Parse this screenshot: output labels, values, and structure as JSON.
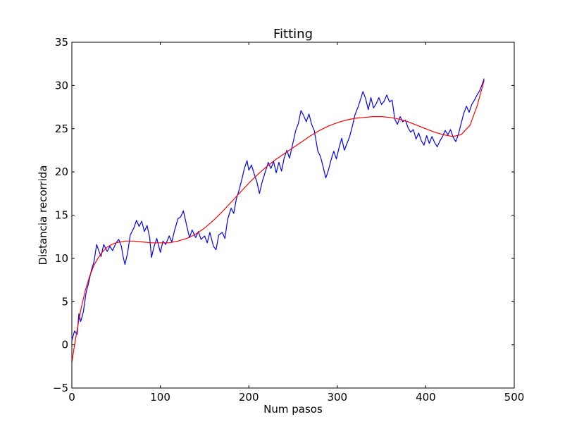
{
  "chart_data": {
    "type": "line",
    "title": "Fitting",
    "xlabel": "Num pasos",
    "ylabel": "Distancia recorrida",
    "xlim": [
      0,
      500
    ],
    "ylim": [
      -5,
      35
    ],
    "xticks": [
      0,
      100,
      200,
      300,
      400,
      500
    ],
    "yticks": [
      -5,
      0,
      5,
      10,
      15,
      20,
      25,
      30,
      35
    ],
    "grid": false,
    "legend": "none",
    "series": [
      {
        "color": "#0000ff",
        "style": "noisy data",
        "points": [
          [
            0,
            0.5
          ],
          [
            3,
            1.6
          ],
          [
            6,
            1.2
          ],
          [
            8,
            3.6
          ],
          [
            10,
            2.7
          ],
          [
            13,
            3.8
          ],
          [
            16,
            6.0
          ],
          [
            19,
            7.2
          ],
          [
            22,
            8.6
          ],
          [
            25,
            9.6
          ],
          [
            28,
            11.6
          ],
          [
            30,
            11.0
          ],
          [
            33,
            10.2
          ],
          [
            36,
            11.6
          ],
          [
            40,
            10.8
          ],
          [
            43,
            11.4
          ],
          [
            46,
            10.9
          ],
          [
            50,
            11.8
          ],
          [
            53,
            12.2
          ],
          [
            56,
            11.4
          ],
          [
            58,
            10.2
          ],
          [
            60,
            9.3
          ],
          [
            63,
            10.6
          ],
          [
            66,
            12.7
          ],
          [
            70,
            13.5
          ],
          [
            73,
            14.4
          ],
          [
            76,
            13.7
          ],
          [
            79,
            14.3
          ],
          [
            82,
            13.1
          ],
          [
            85,
            13.8
          ],
          [
            88,
            12.4
          ],
          [
            90,
            10.1
          ],
          [
            93,
            11.4
          ],
          [
            96,
            12.3
          ],
          [
            100,
            10.7
          ],
          [
            103,
            12.0
          ],
          [
            106,
            11.6
          ],
          [
            110,
            12.6
          ],
          [
            113,
            11.9
          ],
          [
            116,
            13.2
          ],
          [
            120,
            14.6
          ],
          [
            123,
            14.8
          ],
          [
            126,
            15.5
          ],
          [
            128,
            14.6
          ],
          [
            130,
            13.7
          ],
          [
            133,
            12.4
          ],
          [
            136,
            13.3
          ],
          [
            140,
            12.4
          ],
          [
            143,
            13.1
          ],
          [
            146,
            12.2
          ],
          [
            150,
            12.6
          ],
          [
            153,
            11.8
          ],
          [
            156,
            13.0
          ],
          [
            160,
            11.4
          ],
          [
            163,
            11.0
          ],
          [
            166,
            12.7
          ],
          [
            170,
            13.0
          ],
          [
            173,
            12.3
          ],
          [
            176,
            14.5
          ],
          [
            180,
            15.8
          ],
          [
            183,
            15.2
          ],
          [
            186,
            16.9
          ],
          [
            189,
            17.9
          ],
          [
            192,
            19.1
          ],
          [
            195,
            20.4
          ],
          [
            198,
            21.3
          ],
          [
            200,
            20.2
          ],
          [
            203,
            20.8
          ],
          [
            206,
            19.8
          ],
          [
            209,
            18.9
          ],
          [
            212,
            17.5
          ],
          [
            215,
            18.8
          ],
          [
            218,
            19.8
          ],
          [
            222,
            21.1
          ],
          [
            225,
            20.4
          ],
          [
            228,
            21.2
          ],
          [
            231,
            19.9
          ],
          [
            234,
            21.1
          ],
          [
            237,
            20.1
          ],
          [
            240,
            21.6
          ],
          [
            243,
            22.5
          ],
          [
            246,
            21.6
          ],
          [
            250,
            23.4
          ],
          [
            253,
            24.8
          ],
          [
            256,
            25.6
          ],
          [
            259,
            27.1
          ],
          [
            262,
            26.5
          ],
          [
            265,
            25.8
          ],
          [
            268,
            26.7
          ],
          [
            271,
            25.5
          ],
          [
            274,
            24.8
          ],
          [
            278,
            22.4
          ],
          [
            281,
            21.8
          ],
          [
            284,
            20.6
          ],
          [
            287,
            19.3
          ],
          [
            290,
            20.2
          ],
          [
            293,
            21.4
          ],
          [
            296,
            22.4
          ],
          [
            299,
            21.5
          ],
          [
            302,
            22.8
          ],
          [
            305,
            23.9
          ],
          [
            308,
            22.5
          ],
          [
            311,
            23.3
          ],
          [
            314,
            24.1
          ],
          [
            317,
            25.3
          ],
          [
            320,
            26.6
          ],
          [
            323,
            27.4
          ],
          [
            326,
            28.3
          ],
          [
            329,
            29.3
          ],
          [
            332,
            28.5
          ],
          [
            335,
            27.2
          ],
          [
            338,
            28.6
          ],
          [
            341,
            27.4
          ],
          [
            344,
            27.9
          ],
          [
            347,
            28.6
          ],
          [
            350,
            27.8
          ],
          [
            353,
            28.2
          ],
          [
            356,
            28.9
          ],
          [
            359,
            28.1
          ],
          [
            362,
            28.3
          ],
          [
            365,
            26.1
          ],
          [
            368,
            25.5
          ],
          [
            371,
            26.4
          ],
          [
            374,
            25.8
          ],
          [
            377,
            26.0
          ],
          [
            380,
            25.1
          ],
          [
            383,
            24.6
          ],
          [
            386,
            24.9
          ],
          [
            389,
            23.8
          ],
          [
            392,
            24.5
          ],
          [
            395,
            23.6
          ],
          [
            398,
            23.1
          ],
          [
            401,
            24.2
          ],
          [
            404,
            23.3
          ],
          [
            407,
            24.1
          ],
          [
            410,
            23.4
          ],
          [
            413,
            22.9
          ],
          [
            416,
            23.6
          ],
          [
            419,
            24.1
          ],
          [
            422,
            24.8
          ],
          [
            425,
            24.3
          ],
          [
            428,
            24.9
          ],
          [
            431,
            24.0
          ],
          [
            434,
            23.5
          ],
          [
            437,
            24.4
          ],
          [
            440,
            25.6
          ],
          [
            443,
            26.8
          ],
          [
            446,
            27.6
          ],
          [
            449,
            26.9
          ],
          [
            452,
            27.8
          ],
          [
            455,
            28.3
          ],
          [
            458,
            28.9
          ],
          [
            461,
            29.4
          ],
          [
            464,
            30.2
          ],
          [
            466,
            30.8
          ]
        ]
      },
      {
        "color": "#ff0000",
        "style": "polynomial fit",
        "points": [
          [
            0,
            -2.0
          ],
          [
            5,
            1.2
          ],
          [
            10,
            4.0
          ],
          [
            15,
            6.2
          ],
          [
            20,
            7.9
          ],
          [
            25,
            9.2
          ],
          [
            30,
            10.1
          ],
          [
            35,
            10.8
          ],
          [
            40,
            11.3
          ],
          [
            45,
            11.6
          ],
          [
            50,
            11.8
          ],
          [
            60,
            12.0
          ],
          [
            70,
            12.0
          ],
          [
            80,
            11.9
          ],
          [
            90,
            11.8
          ],
          [
            100,
            11.8
          ],
          [
            110,
            11.8
          ],
          [
            120,
            12.0
          ],
          [
            130,
            12.3
          ],
          [
            140,
            12.8
          ],
          [
            150,
            13.5
          ],
          [
            160,
            14.4
          ],
          [
            170,
            15.4
          ],
          [
            180,
            16.5
          ],
          [
            190,
            17.6
          ],
          [
            200,
            18.7
          ],
          [
            210,
            19.7
          ],
          [
            220,
            20.6
          ],
          [
            230,
            21.4
          ],
          [
            240,
            22.1
          ],
          [
            250,
            22.8
          ],
          [
            260,
            23.5
          ],
          [
            270,
            24.2
          ],
          [
            280,
            24.8
          ],
          [
            290,
            25.3
          ],
          [
            300,
            25.7
          ],
          [
            310,
            26.0
          ],
          [
            320,
            26.2
          ],
          [
            330,
            26.3
          ],
          [
            340,
            26.4
          ],
          [
            350,
            26.4
          ],
          [
            360,
            26.3
          ],
          [
            370,
            26.1
          ],
          [
            380,
            25.8
          ],
          [
            390,
            25.4
          ],
          [
            400,
            25.0
          ],
          [
            410,
            24.6
          ],
          [
            420,
            24.3
          ],
          [
            430,
            24.1
          ],
          [
            440,
            24.3
          ],
          [
            450,
            25.4
          ],
          [
            458,
            27.6
          ],
          [
            466,
            30.6
          ]
        ]
      }
    ]
  }
}
